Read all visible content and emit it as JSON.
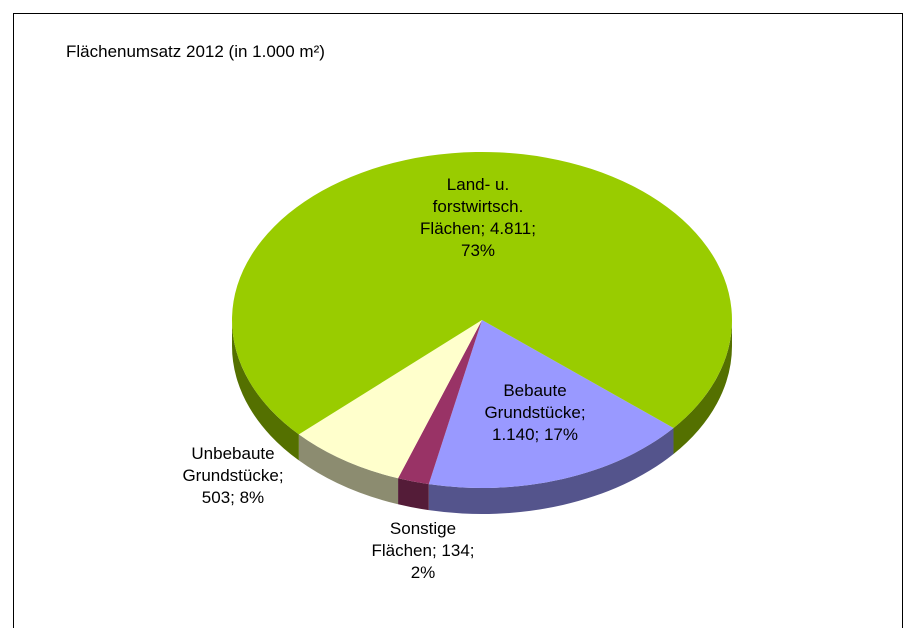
{
  "chart_data": {
    "type": "pie3d",
    "title": "Flächenumsatz 2012 (in 1.000 m²)",
    "values": [
      1140,
      134,
      503,
      4811
    ],
    "value_labels": [
      [
        "Bebaute",
        "Grundstücke;",
        "1.140; 17%"
      ],
      [
        "Sonstige",
        "Flächen; 134;",
        "2%"
      ],
      [
        "Unbebaute",
        "Grundstücke;",
        "503; 8%"
      ],
      [
        "Land- u.",
        "forstwirtsch.",
        "Flächen; 4.811;",
        "73%"
      ]
    ],
    "colors": [
      "#9999ff",
      "#993366",
      "#ffffcc",
      "#99cc00"
    ]
  }
}
